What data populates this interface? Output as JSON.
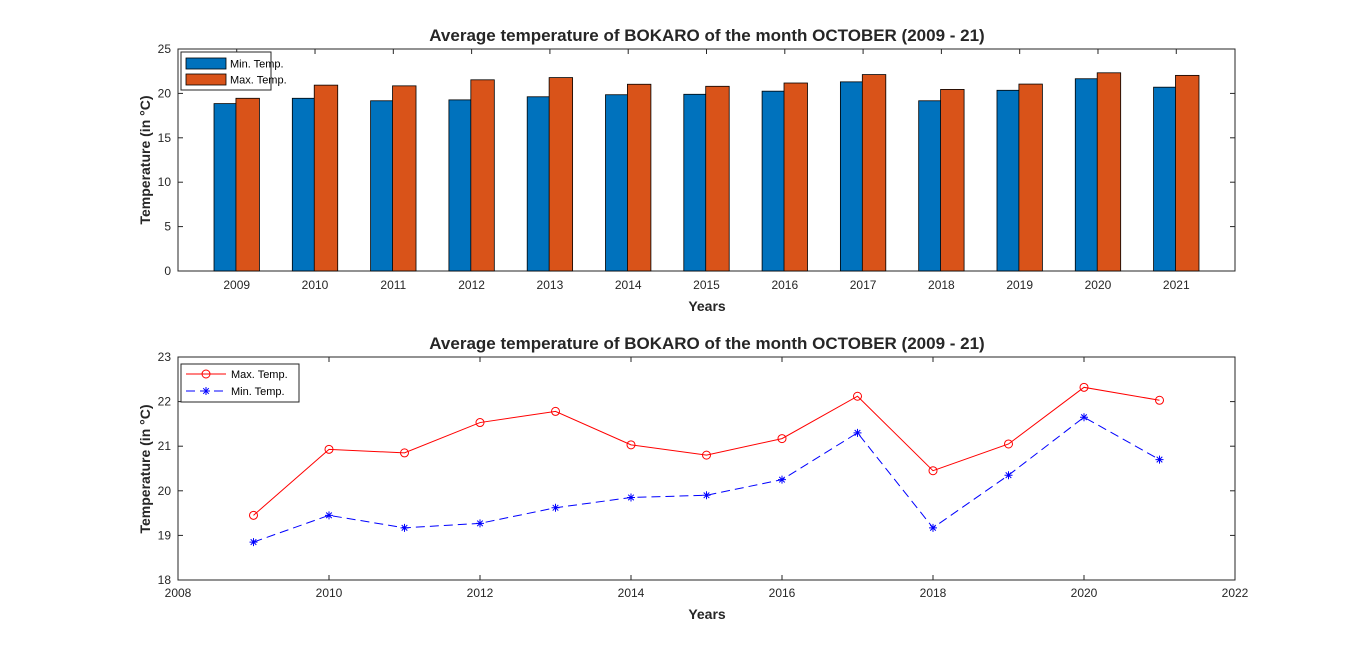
{
  "colors": {
    "min_bar": "#0072BD",
    "max_bar": "#D95319",
    "max_line": "#FF0000",
    "min_line": "#0000FF",
    "axis": "#262626"
  },
  "chart_data": [
    {
      "type": "bar",
      "title": "Average temperature of BOKARO of the month OCTOBER (2009 - 21)",
      "xlabel": "Years",
      "ylabel": "Temperature (in °C)",
      "categories": [
        "2009",
        "2010",
        "2011",
        "2012",
        "2013",
        "2014",
        "2015",
        "2016",
        "2017",
        "2018",
        "2019",
        "2020",
        "2021"
      ],
      "series": [
        {
          "name": "Min. Temp.",
          "values": [
            18.85,
            19.45,
            19.17,
            19.27,
            19.62,
            19.85,
            19.9,
            20.25,
            21.3,
            19.17,
            20.35,
            21.65,
            20.7
          ]
        },
        {
          "name": "Max. Temp.",
          "values": [
            19.45,
            20.93,
            20.85,
            21.53,
            21.78,
            21.03,
            20.8,
            21.17,
            22.12,
            20.45,
            21.05,
            22.32,
            22.03
          ]
        }
      ],
      "ylim": [
        0,
        25
      ],
      "yticks": [
        0,
        5,
        10,
        15,
        20,
        25
      ],
      "legend_position": "top-left",
      "grid": false
    },
    {
      "type": "line",
      "title": "Average temperature of BOKARO of the month OCTOBER (2009 - 21)",
      "xlabel": "Years",
      "ylabel": "Temperature (in °C)",
      "x": [
        2009,
        2010,
        2011,
        2012,
        2013,
        2014,
        2015,
        2016,
        2017,
        2018,
        2019,
        2020,
        2021
      ],
      "series": [
        {
          "name": "Max. Temp.",
          "values": [
            19.45,
            20.93,
            20.85,
            21.53,
            21.78,
            21.03,
            20.8,
            21.17,
            22.12,
            20.45,
            21.05,
            22.32,
            22.03
          ],
          "marker": "o",
          "line_style": "solid"
        },
        {
          "name": "Min. Temp.",
          "values": [
            18.85,
            19.45,
            19.17,
            19.27,
            19.62,
            19.85,
            19.9,
            20.25,
            21.3,
            19.17,
            20.35,
            21.65,
            20.7
          ],
          "marker": "*",
          "line_style": "dashed"
        }
      ],
      "xlim": [
        2008,
        2022
      ],
      "ylim": [
        18,
        23
      ],
      "xticks": [
        2008,
        2010,
        2012,
        2014,
        2016,
        2018,
        2020,
        2022
      ],
      "yticks": [
        18,
        19,
        20,
        21,
        22,
        23
      ],
      "legend_position": "top-left",
      "grid": false
    }
  ]
}
